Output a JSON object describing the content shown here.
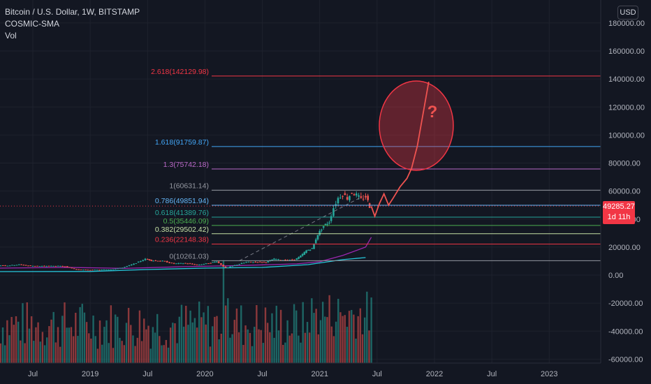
{
  "legend": {
    "symbol": "Bitcoin / U.S. Dollar, 1W, BITSTAMP",
    "indicator": "COSMIC-SMA",
    "volume": "Vol"
  },
  "currency": "USD",
  "last_price": {
    "value": "49285.27",
    "countdown": "1d 11h"
  },
  "annotation": {
    "text": "?"
  },
  "colors": {
    "up": "#26a69a",
    "down": "#ef5350",
    "background": "#131722",
    "grid": "#1e222d",
    "ma_purple": "#9c27b0",
    "ma_blue": "#2196f3",
    "ma_lightblue": "#26c6da"
  },
  "chart_data": {
    "type": "candlestick",
    "yaxis": {
      "ticks": [
        "180000.00",
        "160000.00",
        "140000.00",
        "120000.00",
        "100000.00",
        "80000.00",
        "60000.00",
        "40000.00",
        "20000.00",
        "0.00",
        "-20000.00",
        "-40000.00",
        "-60000.00"
      ],
      "tick_values": [
        180000,
        160000,
        140000,
        120000,
        100000,
        80000,
        60000,
        40000,
        20000,
        0,
        -20000,
        -40000,
        -60000
      ],
      "range": [
        -62000,
        190000
      ]
    },
    "xaxis": {
      "labels": [
        "Jul",
        "2019",
        "Jul",
        "2020",
        "Jul",
        "2021",
        "Jul",
        "2022",
        "Jul",
        "2023"
      ],
      "label_dates": [
        2018.5,
        2019.0,
        2019.5,
        2020.0,
        2020.5,
        2021.0,
        2021.5,
        2022.0,
        2022.5,
        2023.0
      ],
      "range": [
        2018.2,
        2023.5
      ]
    },
    "fib_levels": [
      {
        "label": "0(10261.03)",
        "value": 10261.03,
        "color": "#9598a1"
      },
      {
        "label": "0.236(22148.38)",
        "value": 22148.38,
        "color": "#f23645"
      },
      {
        "label": "0.382(29502.42)",
        "value": 29502.42,
        "color": "#c5e1a5"
      },
      {
        "label": "0.5(35446.09)",
        "value": 35446.09,
        "color": "#4caf50"
      },
      {
        "label": "0.618(41389.76)",
        "value": 41389.76,
        "color": "#26a69a"
      },
      {
        "label": "0.786(49851.94)",
        "value": 49851.94,
        "color": "#64b5f6"
      },
      {
        "label": "1(60631.14)",
        "value": 60631.14,
        "color": "#9598a1"
      },
      {
        "label": "1.3(75742.18)",
        "value": 75742.18,
        "color": "#ba68c8"
      },
      {
        "label": "1.618(91759.87)",
        "value": 91759.87,
        "color": "#42a5f5"
      },
      {
        "label": "2.618(142129.98)",
        "value": 142129.98,
        "color": "#f23645"
      }
    ],
    "price_path": [
      [
        2018.2,
        7000
      ],
      [
        2018.3,
        6800
      ],
      [
        2018.4,
        7500
      ],
      [
        2018.5,
        6600
      ],
      [
        2018.6,
        6400
      ],
      [
        2018.7,
        6500
      ],
      [
        2018.8,
        6300
      ],
      [
        2018.9,
        4000
      ],
      [
        2019.0,
        3700
      ],
      [
        2019.1,
        3800
      ],
      [
        2019.2,
        4100
      ],
      [
        2019.3,
        5300
      ],
      [
        2019.4,
        8000
      ],
      [
        2019.5,
        11500
      ],
      [
        2019.55,
        10500
      ],
      [
        2019.65,
        10000
      ],
      [
        2019.75,
        8200
      ],
      [
        2019.85,
        8500
      ],
      [
        2019.95,
        7200
      ],
      [
        2020.05,
        8500
      ],
      [
        2020.12,
        9800
      ],
      [
        2020.2,
        5000
      ],
      [
        2020.28,
        7000
      ],
      [
        2020.38,
        9300
      ],
      [
        2020.48,
        9400
      ],
      [
        2020.55,
        9200
      ],
      [
        2020.62,
        11500
      ],
      [
        2020.72,
        10500
      ],
      [
        2020.8,
        11000
      ],
      [
        2020.85,
        13500
      ],
      [
        2020.9,
        17500
      ],
      [
        2020.95,
        19000
      ],
      [
        2021.0,
        29000
      ],
      [
        2021.05,
        35000
      ],
      [
        2021.1,
        38000
      ],
      [
        2021.14,
        48000
      ],
      [
        2021.18,
        55000
      ],
      [
        2021.22,
        58000
      ],
      [
        2021.26,
        55000
      ],
      [
        2021.3,
        59000
      ],
      [
        2021.34,
        57000
      ],
      [
        2021.38,
        54000
      ],
      [
        2021.42,
        56000
      ],
      [
        2021.45,
        49285
      ]
    ],
    "forecast_path": [
      [
        2021.45,
        49000
      ],
      [
        2021.48,
        42000
      ],
      [
        2021.52,
        51000
      ],
      [
        2021.56,
        58000
      ],
      [
        2021.6,
        50000
      ],
      [
        2021.64,
        55000
      ],
      [
        2021.7,
        63000
      ],
      [
        2021.76,
        69000
      ],
      [
        2021.8,
        76000
      ],
      [
        2021.85,
        92000
      ],
      [
        2021.9,
        115000
      ],
      [
        2021.95,
        138000
      ]
    ],
    "sma_slow": [
      [
        2018.2,
        2500
      ],
      [
        2019.0,
        2600
      ],
      [
        2019.5,
        4000
      ],
      [
        2020.0,
        5000
      ],
      [
        2020.5,
        5500
      ],
      [
        2020.9,
        7500
      ],
      [
        2021.2,
        11000
      ],
      [
        2021.4,
        12500
      ]
    ],
    "sma_mid": [
      [
        2018.2,
        5000
      ],
      [
        2018.8,
        5500
      ],
      [
        2019.3,
        4800
      ],
      [
        2019.8,
        6000
      ],
      [
        2020.3,
        6800
      ],
      [
        2020.8,
        8000
      ],
      [
        2021.0,
        9500
      ],
      [
        2021.2,
        14000
      ],
      [
        2021.4,
        20000
      ],
      [
        2021.45,
        27000
      ]
    ],
    "volume_note": "relative weekly volume bars"
  }
}
